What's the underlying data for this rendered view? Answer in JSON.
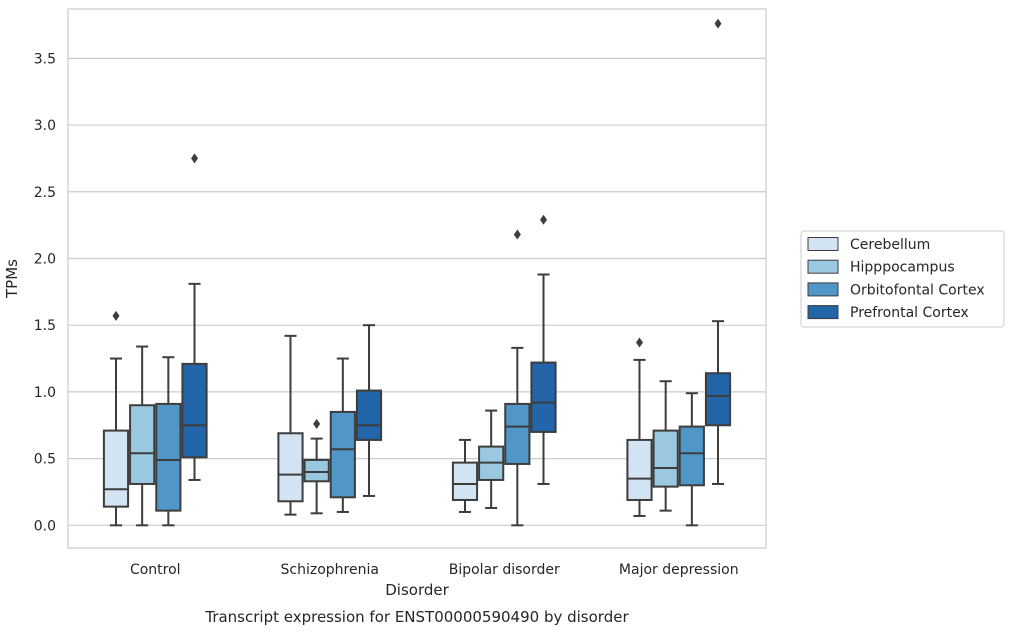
{
  "chart_data": {
    "type": "box",
    "caption": "Transcript expression for ENST00000590490 by disorder",
    "xlabel": "Disorder",
    "ylabel": "TPMs",
    "ylim": [
      -0.17,
      3.87
    ],
    "yticks": [
      0.0,
      0.5,
      1.0,
      1.5,
      2.0,
      2.5,
      3.0,
      3.5
    ],
    "ytick_labels": [
      "0.0",
      "0.5",
      "1.0",
      "1.5",
      "2.0",
      "2.5",
      "3.0",
      "3.5"
    ],
    "grid": "horizontal",
    "legend_position": "right",
    "categories": [
      "Control",
      "Schizophrenia",
      "Bipolar disorder",
      "Major depression"
    ],
    "series": [
      {
        "name": "Cerebellum",
        "color": "#d2e3f3",
        "boxes": [
          {
            "whisker_low": 0.0,
            "q1": 0.14,
            "median": 0.27,
            "q3": 0.71,
            "whisker_high": 1.25,
            "outliers": [
              1.57
            ]
          },
          {
            "whisker_low": 0.08,
            "q1": 0.18,
            "median": 0.38,
            "q3": 0.69,
            "whisker_high": 1.42,
            "outliers": []
          },
          {
            "whisker_low": 0.1,
            "q1": 0.19,
            "median": 0.31,
            "q3": 0.47,
            "whisker_high": 0.64,
            "outliers": []
          },
          {
            "whisker_low": 0.07,
            "q1": 0.19,
            "median": 0.35,
            "q3": 0.64,
            "whisker_high": 1.24,
            "outliers": [
              1.37
            ]
          }
        ]
      },
      {
        "name": "Hipppocampus",
        "color": "#9ac8e0",
        "boxes": [
          {
            "whisker_low": 0.0,
            "q1": 0.31,
            "median": 0.54,
            "q3": 0.9,
            "whisker_high": 1.34,
            "outliers": []
          },
          {
            "whisker_low": 0.09,
            "q1": 0.33,
            "median": 0.4,
            "q3": 0.49,
            "whisker_high": 0.65,
            "outliers": [
              0.76
            ]
          },
          {
            "whisker_low": 0.13,
            "q1": 0.34,
            "median": 0.47,
            "q3": 0.59,
            "whisker_high": 0.86,
            "outliers": []
          },
          {
            "whisker_low": 0.11,
            "q1": 0.29,
            "median": 0.43,
            "q3": 0.71,
            "whisker_high": 1.08,
            "outliers": []
          }
        ]
      },
      {
        "name": "Orbitofontal Cortex",
        "color": "#5196c8",
        "boxes": [
          {
            "whisker_low": 0.0,
            "q1": 0.11,
            "median": 0.49,
            "q3": 0.91,
            "whisker_high": 1.26,
            "outliers": []
          },
          {
            "whisker_low": 0.1,
            "q1": 0.21,
            "median": 0.57,
            "q3": 0.85,
            "whisker_high": 1.25,
            "outliers": []
          },
          {
            "whisker_low": 0.0,
            "q1": 0.46,
            "median": 0.74,
            "q3": 0.91,
            "whisker_high": 1.33,
            "outliers": [
              2.18
            ]
          },
          {
            "whisker_low": 0.0,
            "q1": 0.3,
            "median": 0.54,
            "q3": 0.74,
            "whisker_high": 0.99,
            "outliers": []
          }
        ]
      },
      {
        "name": "Prefrontal Cortex",
        "color": "#2265a8",
        "boxes": [
          {
            "whisker_low": 0.34,
            "q1": 0.51,
            "median": 0.75,
            "q3": 1.21,
            "whisker_high": 1.81,
            "outliers": [
              2.75
            ]
          },
          {
            "whisker_low": 0.22,
            "q1": 0.64,
            "median": 0.75,
            "q3": 1.01,
            "whisker_high": 1.5,
            "outliers": []
          },
          {
            "whisker_low": 0.31,
            "q1": 0.7,
            "median": 0.92,
            "q3": 1.22,
            "whisker_high": 1.88,
            "outliers": [
              2.29
            ]
          },
          {
            "whisker_low": 0.31,
            "q1": 0.75,
            "median": 0.97,
            "q3": 1.14,
            "whisker_high": 1.53,
            "outliers": [
              3.76
            ]
          }
        ]
      }
    ]
  }
}
